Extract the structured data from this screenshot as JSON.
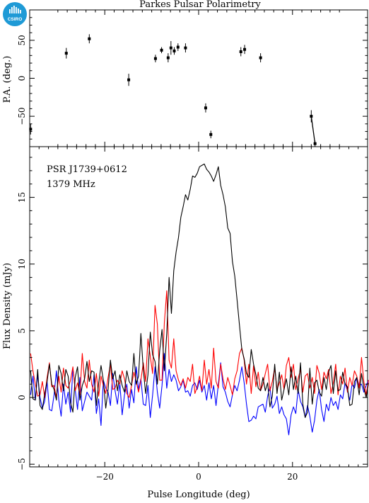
{
  "title": "Parkes Pulsar Polarimetry",
  "logo_text": "CSIRO",
  "chart_data": [
    {
      "type": "scatter",
      "name": "position-angle",
      "xlabel": "",
      "ylabel": "P.A. (deg.)",
      "xlim": [
        -36,
        36
      ],
      "ylim": [
        -90,
        90
      ],
      "yticks": [
        -50,
        0,
        50
      ],
      "points": [
        {
          "x": -35.8,
          "y": -67,
          "err": 7
        },
        {
          "x": -28.2,
          "y": 33,
          "err": 7
        },
        {
          "x": -23.3,
          "y": 52,
          "err": 6
        },
        {
          "x": -14.9,
          "y": -2,
          "err": 8
        },
        {
          "x": -9.2,
          "y": 26,
          "err": 5
        },
        {
          "x": -7.9,
          "y": 37,
          "err": 4
        },
        {
          "x": -6.5,
          "y": 27,
          "err": 6
        },
        {
          "x": -5.9,
          "y": 40,
          "err": 9
        },
        {
          "x": -5.2,
          "y": 36,
          "err": 5
        },
        {
          "x": -4.4,
          "y": 41,
          "err": 5
        },
        {
          "x": -2.8,
          "y": 40,
          "err": 6
        },
        {
          "x": 1.5,
          "y": -39,
          "err": 6
        },
        {
          "x": 2.6,
          "y": -74,
          "err": 5
        },
        {
          "x": 9.0,
          "y": 35,
          "err": 6
        },
        {
          "x": 9.8,
          "y": 38,
          "err": 6
        },
        {
          "x": 13.2,
          "y": 27,
          "err": 6
        },
        {
          "x": 24.0,
          "y": -50,
          "err": 8
        },
        {
          "x": 24.8,
          "y": -86,
          "err": 4
        }
      ]
    },
    {
      "type": "line",
      "name": "flux-profile",
      "xlabel": "Pulse Longitude (deg)",
      "ylabel": "Flux Density (mJy)",
      "xlim": [
        -36,
        36
      ],
      "ylim": [
        -5.2,
        18.8
      ],
      "xticks": [
        -20,
        0,
        20
      ],
      "yticks": [
        -5,
        0,
        5,
        10,
        15
      ],
      "annotations": [
        "PSR J1739+0612",
        "1379 MHz"
      ],
      "x_start": -35.8,
      "x_step": 0.5,
      "series": [
        {
          "color": "#000000",
          "values": [
            2.0,
            -0.1,
            -0.2,
            2.1,
            -0.6,
            -0.9,
            0.3,
            1.2,
            2.5,
            1.0,
            0.6,
            -0.2,
            2.4,
            1.8,
            0.5,
            2.1,
            1.6,
            -0.4,
            -1.1,
            1.5,
            2.3,
            -0.2,
            0.9,
            1.4,
            2.7,
            1.2,
            2.0,
            1.9,
            -0.6,
            1.1,
            2.4,
            1.3,
            -0.8,
            0.6,
            2.8,
            1.4,
            2.0,
            0.5,
            1.7,
            0.9,
            0.4,
            2.0,
            1.2,
            0.9,
            3.3,
            1.0,
            1.6,
            4.8,
            2.1,
            0.3,
            1.7,
            4.9,
            3.2,
            2.7,
            1.0,
            3.5,
            5.1,
            2.0,
            4.8,
            9.0,
            6.3,
            9.5,
            10.9,
            12.0,
            13.5,
            14.3,
            15.2,
            14.8,
            15.6,
            16.6,
            16.5,
            16.8,
            17.3,
            17.4,
            17.5,
            17.1,
            16.9,
            16.6,
            16.2,
            16.7,
            17.3,
            15.9,
            15.2,
            14.3,
            12.7,
            12.3,
            10.2,
            9.1,
            7.3,
            5.4,
            3.6,
            2.9,
            1.8,
            1.5,
            3.6,
            2.5,
            1.7,
            0.7,
            0.5,
            1.5,
            0.5,
            1.1,
            -0.7,
            0.1,
            2.5,
            0.3,
            1.9,
            -0.2,
            0.6,
            1.4,
            0.2,
            2.3,
            0.6,
            1.6,
            0.3,
            2.6,
            -0.5,
            -1.5,
            -1.1,
            2.2,
            -0.5,
            1.1,
            1.3,
            0.4,
            0.1,
            1.5,
            0.6,
            1.9,
            2.4,
            0.3,
            2.0,
            0.5,
            0.6,
            1.9,
            1.0,
            0.8,
            -0.6,
            -0.5,
            1.2,
            1.5,
            0.2,
            1.8,
            0.7,
            0.0,
            1.1
          ]
        },
        {
          "color": "#ff0000",
          "values": [
            3.3,
            2.0,
            1.0,
            0.1,
            0.2,
            1.2,
            0.0,
            1.5,
            2.6,
            0.8,
            0.9,
            0.0,
            1.6,
            0.4,
            2.2,
            0.9,
            0.7,
            1.3,
            2.3,
            0.5,
            1.1,
            0.2,
            3.3,
            1.2,
            0.7,
            2.8,
            1.0,
            0.4,
            1.8,
            0.1,
            1.6,
            0.9,
            0.3,
            1.5,
            2.5,
            0.6,
            0.7,
            1.3,
            1.0,
            2.0,
            1.4,
            0.3,
            0.0,
            0.9,
            1.9,
            1.2,
            0.4,
            1.3,
            2.6,
            1.2,
            4.4,
            3.1,
            1.8,
            6.9,
            5.5,
            1.3,
            1.3,
            5.6,
            8.0,
            2.8,
            2.2,
            4.4,
            2.0,
            1.3,
            0.9,
            1.4,
            0.7,
            1.5,
            1.2,
            2.5,
            0.3,
            0.8,
            1.6,
            0.5,
            2.8,
            1.0,
            2.1,
            0.7,
            3.7,
            1.2,
            0.7,
            2.5,
            1.4,
            0.6,
            1.5,
            0.9,
            0.2,
            1.4,
            2.0,
            3.3,
            3.7,
            2.8,
            1.0,
            2.5,
            0.3,
            2.4,
            0.8,
            1.9,
            0.5,
            1.0,
            1.8,
            2.5,
            0.5,
            1.2,
            2.2,
            0.6,
            1.1,
            1.7,
            0.6,
            2.4,
            3.0,
            1.5,
            2.5,
            0.6,
            1.4,
            2.1,
            0.4,
            1.6,
            1.8,
            0.7,
            1.5,
            0.3,
            2.4,
            1.8,
            0.6,
            1.9,
            1.4,
            2.1,
            0.3,
            1.1,
            2.5,
            0.2,
            1.6,
            1.0,
            2.2,
            0.4,
            1.5,
            0.9,
            2.0,
            1.6,
            0.7,
            3.0,
            1.2,
            0.2,
            1.3
          ]
        },
        {
          "color": "#0000ff",
          "values": [
            0.2,
            1.6,
            -0.2,
            1.7,
            0.0,
            -0.8,
            -0.3,
            1.2,
            -0.9,
            -1.0,
            0.2,
            2.0,
            -0.2,
            -1.4,
            1.0,
            -0.5,
            0.4,
            -1.1,
            2.2,
            0.6,
            -0.9,
            1.5,
            -1.0,
            -0.3,
            0.4,
            0.1,
            -0.2,
            1.7,
            -1.2,
            -0.1,
            -2.1,
            1.3,
            0.7,
            0.4,
            -0.6,
            1.8,
            0.5,
            -0.5,
            1.1,
            -1.3,
            0.2,
            1.0,
            -0.8,
            0.6,
            -0.4,
            2.3,
            0.6,
            1.4,
            -0.5,
            -0.6,
            0.9,
            -1.5,
            0.2,
            2.3,
            0.4,
            -0.8,
            0.9,
            3.3,
            0.7,
            2.1,
            1.2,
            1.7,
            1.3,
            0.5,
            0.8,
            1.3,
            0.4,
            0.5,
            0.1,
            0.9,
            1.1,
            0.6,
            1.3,
            0.4,
            0.9,
            -0.2,
            1.1,
            -0.1,
            0.9,
            -0.6,
            1.0,
            2.6,
            0.8,
            0.4,
            -0.3,
            -0.7,
            0.2,
            0.9,
            0.5,
            1.3,
            2.3,
            1.1,
            -0.5,
            -1.8,
            -1.7,
            -1.4,
            -1.6,
            -0.7,
            -0.6,
            -0.5,
            -1.1,
            0.1,
            0.8,
            -0.8,
            -0.5,
            0.1,
            -1.2,
            -0.7,
            -1.3,
            -1.6,
            -2.8,
            -1.3,
            -0.7,
            -1.2,
            0.6,
            -0.3,
            -0.7,
            -1.5,
            -0.6,
            -1.4,
            -2.6,
            -1.7,
            -0.2,
            0.6,
            -0.9,
            -1.8,
            -0.5,
            -1.0,
            0.0,
            -0.6,
            -0.3,
            -0.9,
            0.2,
            -0.1,
            1.1,
            0.5,
            -0.2,
            1.0,
            0.7,
            1.5,
            0.9,
            1.0,
            0.4,
            0.9,
            1.3
          ]
        }
      ]
    }
  ]
}
